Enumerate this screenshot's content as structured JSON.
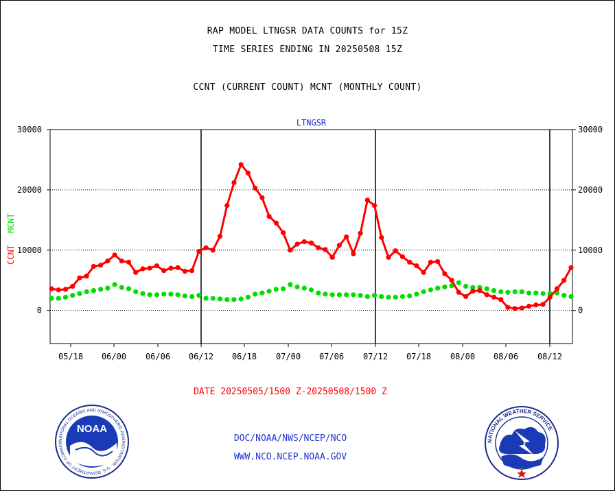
{
  "header": {
    "line1": "RAP MODEL LTNGSR DATA COUNTS for 15Z",
    "line2": "TIME SERIES ENDING IN 20250508 15Z",
    "line3": "CCNT (CURRENT COUNT) MCNT (MONTHLY COUNT)"
  },
  "footer": {
    "date_range": "DATE 20250505/1500 Z-20250508/1500 Z",
    "org": "DOC/NOAA/NWS/NCEP/NCO",
    "url": "WWW.NCO.NCEP.NOAA.GOV"
  },
  "logos": {
    "left_text": "NOAA",
    "left_ring": "NATIONAL OCEANIC AND ATMOSPHERIC ADMINISTRATION · U.S. DEPARTMENT OF COMMERCE",
    "right_ring": "NATIONAL WEATHER SERVICE"
  },
  "colors": {
    "ccnt": "#ff0000",
    "mcnt": "#00dd00",
    "title": "#2233cc"
  },
  "chart_data": {
    "type": "line",
    "title": "LTNGSR",
    "ylabel_series": [
      "CCNT",
      "MCNT"
    ],
    "ylim": [
      -5500,
      30000
    ],
    "yticks": [
      0,
      10000,
      20000,
      30000
    ],
    "ytick_labels": [
      "0",
      "10000",
      "20000",
      "30000"
    ],
    "xticks": [
      "05/18",
      "06/00",
      "06/06",
      "06/12",
      "06/18",
      "07/00",
      "07/06",
      "07/12",
      "07/18",
      "08/00",
      "08/06",
      "08/12"
    ],
    "day_separators": [
      "06/12",
      "07/12",
      "08/12"
    ],
    "grid": "horizontal dotted",
    "series": [
      {
        "name": "CCNT",
        "color": "#ff0000",
        "values": [
          3600,
          3400,
          3500,
          4000,
          5400,
          5700,
          7300,
          7500,
          8200,
          9200,
          8200,
          8000,
          6300,
          6900,
          7000,
          7400,
          6600,
          7000,
          7100,
          6500,
          6600,
          9800,
          10400,
          10000,
          12300,
          17400,
          21200,
          24200,
          22800,
          20300,
          18700,
          15600,
          14500,
          12900,
          10000,
          11000,
          11400,
          11200,
          10400,
          10100,
          8800,
          10800,
          12200,
          9400,
          12800,
          18300,
          17400,
          12100,
          8800,
          9900,
          8900,
          8000,
          7400,
          6300,
          8000,
          8100,
          6100,
          5000,
          3000,
          2300,
          3200,
          3300,
          2600,
          2200,
          1800,
          500,
          300,
          400,
          700,
          900,
          1000,
          2200,
          3600,
          5000,
          7100
        ]
      },
      {
        "name": "MCNT",
        "color": "#00dd00",
        "values": [
          2000,
          2000,
          2200,
          2500,
          2800,
          3100,
          3300,
          3500,
          3700,
          4300,
          3800,
          3600,
          3100,
          2800,
          2600,
          2600,
          2700,
          2700,
          2600,
          2400,
          2300,
          2500,
          2000,
          2000,
          1900,
          1800,
          1800,
          1900,
          2200,
          2700,
          2900,
          3200,
          3500,
          3600,
          4300,
          3900,
          3700,
          3400,
          2900,
          2700,
          2600,
          2600,
          2600,
          2600,
          2500,
          2300,
          2500,
          2300,
          2200,
          2200,
          2300,
          2400,
          2700,
          3100,
          3400,
          3700,
          3900,
          4100,
          4600,
          4000,
          3800,
          3800,
          3600,
          3300,
          3100,
          3000,
          3100,
          3100,
          2900,
          2900,
          2800,
          2800,
          2900,
          2500,
          2300
        ]
      }
    ]
  }
}
